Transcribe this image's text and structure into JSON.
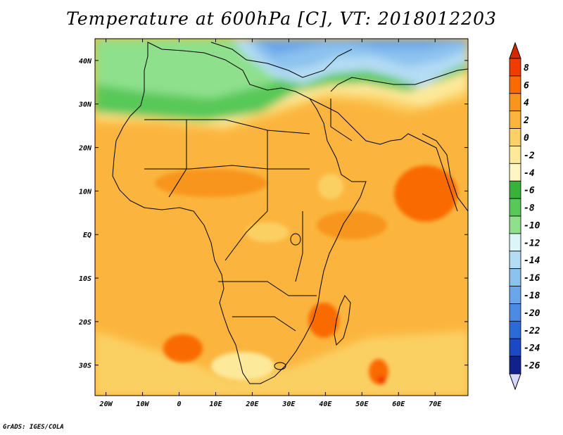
{
  "title": "Temperature at 600hPa [C], VT: 2018012203",
  "credit": "GrADS: IGES/COLA",
  "x_axis": {
    "range": [
      -23,
      79
    ],
    "ticks": [
      {
        "value": -20,
        "label": "20W"
      },
      {
        "value": -10,
        "label": "10W"
      },
      {
        "value": 0,
        "label": "0"
      },
      {
        "value": 10,
        "label": "10E"
      },
      {
        "value": 20,
        "label": "20E"
      },
      {
        "value": 30,
        "label": "30E"
      },
      {
        "value": 40,
        "label": "40E"
      },
      {
        "value": 50,
        "label": "50E"
      },
      {
        "value": 60,
        "label": "60E"
      },
      {
        "value": 70,
        "label": "70E"
      }
    ]
  },
  "y_axis": {
    "range": [
      -37,
      45
    ],
    "ticks": [
      {
        "value": 40,
        "label": "40N"
      },
      {
        "value": 30,
        "label": "30N"
      },
      {
        "value": 20,
        "label": "20N"
      },
      {
        "value": 10,
        "label": "10N"
      },
      {
        "value": 0,
        "label": "EQ"
      },
      {
        "value": -10,
        "label": "10S"
      },
      {
        "value": -20,
        "label": "20S"
      },
      {
        "value": -30,
        "label": "30S"
      }
    ]
  },
  "colorbar": {
    "top_color": "#d62800",
    "bottom_color": "#d8d8ff",
    "bins": [
      {
        "color": "#f03c00",
        "label": "8"
      },
      {
        "color": "#f96a00",
        "label": "6"
      },
      {
        "color": "#f8951d",
        "label": "4"
      },
      {
        "color": "#fbb53e",
        "label": "2"
      },
      {
        "color": "#fbd064",
        "label": "0"
      },
      {
        "color": "#fde99a",
        "label": "-2"
      },
      {
        "color": "#fff6c4",
        "label": "-4"
      },
      {
        "color": "#37b23a",
        "label": "-6"
      },
      {
        "color": "#58c858",
        "label": "-8"
      },
      {
        "color": "#8ee08c",
        "label": "-10"
      },
      {
        "color": "#dcf6f8",
        "label": "-12"
      },
      {
        "color": "#b4dcf4",
        "label": "-14"
      },
      {
        "color": "#8cc2ee",
        "label": "-16"
      },
      {
        "color": "#6aa6ea",
        "label": "-18"
      },
      {
        "color": "#4c8ae4",
        "label": "-20"
      },
      {
        "color": "#2c6ad8",
        "label": "-22"
      },
      {
        "color": "#1c48c4",
        "label": "-24"
      },
      {
        "color": "#10208c",
        "label": "-26"
      }
    ]
  }
}
